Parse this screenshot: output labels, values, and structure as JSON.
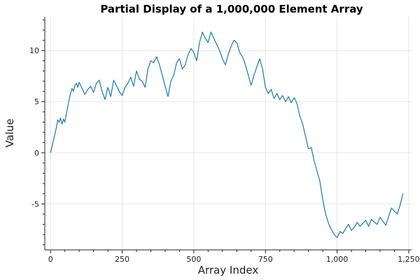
{
  "chart_data": {
    "type": "line",
    "title": "Partial Display of a 1,000,000 Element Array",
    "xlabel": "Array Index",
    "ylabel": "Value",
    "xlim": [
      -20,
      1260
    ],
    "ylim": [
      -9.5,
      13.3
    ],
    "grid": true,
    "x_ticks": [
      0,
      250,
      500,
      750,
      1000,
      1250
    ],
    "x_tick_labels": [
      "0",
      "250",
      "500",
      "750",
      "1,000",
      "1,250"
    ],
    "y_ticks": [
      10,
      5,
      0,
      -5
    ],
    "y_tick_labels": [
      "10",
      "5",
      "0",
      "-5"
    ],
    "series": [
      {
        "color": "#1f77b4",
        "x": [
          0,
          5,
          10,
          15,
          20,
          25,
          30,
          35,
          40,
          45,
          50,
          55,
          60,
          65,
          70,
          75,
          80,
          85,
          90,
          95,
          100,
          110,
          120,
          130,
          140,
          150,
          160,
          170,
          180,
          190,
          200,
          210,
          220,
          230,
          240,
          250,
          260,
          270,
          280,
          290,
          300,
          310,
          320,
          330,
          340,
          350,
          360,
          370,
          380,
          390,
          400,
          410,
          420,
          430,
          440,
          450,
          460,
          470,
          480,
          490,
          500,
          510,
          520,
          530,
          540,
          550,
          560,
          570,
          580,
          590,
          600,
          610,
          620,
          630,
          640,
          650,
          660,
          670,
          680,
          690,
          700,
          710,
          720,
          730,
          740,
          750,
          760,
          770,
          780,
          790,
          800,
          810,
          820,
          830,
          840,
          850,
          860,
          870,
          880,
          890,
          900,
          910,
          920,
          930,
          940,
          950,
          960,
          970,
          980,
          990,
          1000,
          1010,
          1020,
          1030,
          1040,
          1050,
          1060,
          1070,
          1080,
          1090,
          1100,
          1110,
          1120,
          1130,
          1140,
          1150,
          1160,
          1170,
          1180,
          1190,
          1200,
          1210,
          1220,
          1230
        ],
        "y": [
          0,
          0.6,
          1.2,
          1.8,
          2.4,
          3.2,
          3.0,
          3.4,
          2.8,
          3.3,
          3.0,
          3.8,
          4.5,
          5.2,
          5.8,
          6.3,
          6.0,
          6.6,
          6.8,
          6.4,
          6.9,
          6.3,
          5.7,
          6.2,
          6.5,
          5.9,
          6.8,
          7.1,
          6.0,
          5.2,
          6.4,
          5.5,
          7.1,
          6.6,
          6.0,
          5.6,
          6.4,
          6.8,
          7.4,
          6.5,
          8.0,
          7.2,
          7.0,
          6.4,
          8.2,
          9.0,
          8.8,
          9.4,
          8.6,
          7.6,
          6.5,
          5.5,
          7.0,
          7.6,
          8.8,
          9.2,
          8.2,
          8.6,
          9.6,
          10.2,
          9.8,
          9.0,
          10.8,
          11.8,
          11.2,
          10.8,
          11.8,
          11.2,
          10.6,
          10.0,
          9.2,
          8.6,
          9.6,
          10.4,
          11.0,
          10.8,
          9.8,
          9.4,
          8.6,
          7.6,
          6.6,
          7.6,
          8.4,
          9.2,
          8.2,
          6.4,
          5.8,
          6.2,
          5.3,
          5.8,
          5.2,
          5.6,
          5.0,
          5.5,
          4.9,
          5.4,
          4.8,
          3.6,
          2.8,
          1.6,
          0.4,
          0.5,
          -0.8,
          -1.8,
          -2.8,
          -4.6,
          -6.0,
          -6.9,
          -7.5,
          -8.0,
          -8.3,
          -7.7,
          -7.9,
          -7.4,
          -7.0,
          -7.6,
          -7.3,
          -6.8,
          -7.2,
          -6.9,
          -6.6,
          -7.2,
          -6.5,
          -6.8,
          -7.0,
          -6.3,
          -6.7,
          -7.1,
          -6.2,
          -5.4,
          -5.7,
          -6.0,
          -5.1,
          -4.0
        ]
      }
    ]
  }
}
